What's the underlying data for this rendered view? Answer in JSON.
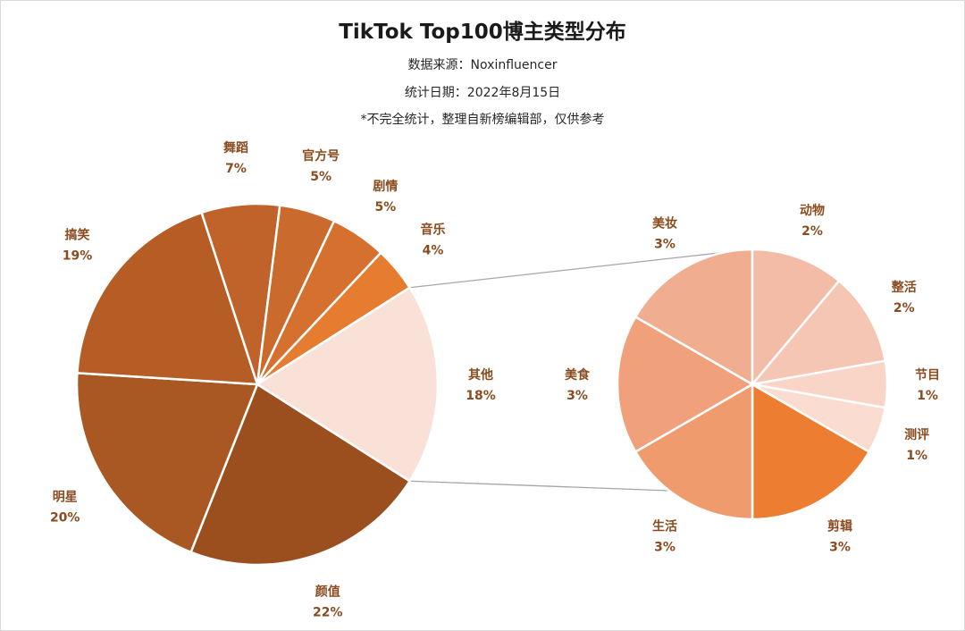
{
  "header": {
    "title": "TikTok Top100博主类型分布",
    "source": "数据来源：Noxinfluencer",
    "date": "统计日期：2022年8月15日",
    "note": "*不完全统计，整理自新榜编辑部，仅供参考"
  },
  "chart_data": {
    "type": "pie",
    "title": "TikTok Top100博主类型分布",
    "main_pie": {
      "slices": [
        {
          "label": "颜值",
          "value": 22,
          "pct": "22%",
          "color": "#9b4f1e"
        },
        {
          "label": "明星",
          "value": 20,
          "pct": "20%",
          "color": "#a95723"
        },
        {
          "label": "搞笑",
          "value": 19,
          "pct": "19%",
          "color": "#b55d25"
        },
        {
          "label": "舞蹈",
          "value": 7,
          "pct": "7%",
          "color": "#c0632a"
        },
        {
          "label": "官方号",
          "value": 5,
          "pct": "5%",
          "color": "#ca6a2c"
        },
        {
          "label": "剧情",
          "value": 5,
          "pct": "5%",
          "color": "#d5702f"
        },
        {
          "label": "音乐",
          "value": 4,
          "pct": "4%",
          "color": "#e57c30"
        },
        {
          "label": "其他",
          "value": 18,
          "pct": "18%",
          "color": "#fae1d8"
        }
      ]
    },
    "secondary_pie": {
      "slices": [
        {
          "label": "剪辑",
          "value": 3,
          "pct": "3%",
          "color": "#ed7d31"
        },
        {
          "label": "生活",
          "value": 3,
          "pct": "3%",
          "color": "#f09b6d"
        },
        {
          "label": "美食",
          "value": 3,
          "pct": "3%",
          "color": "#f0a07b"
        },
        {
          "label": "美妆",
          "value": 3,
          "pct": "3%",
          "color": "#f0ad8f"
        },
        {
          "label": "动物",
          "value": 2,
          "pct": "2%",
          "color": "#f3bca6"
        },
        {
          "label": "整活",
          "value": 2,
          "pct": "2%",
          "color": "#f4c6b3"
        },
        {
          "label": "节目",
          "value": 1,
          "pct": "1%",
          "color": "#f8d5c7"
        },
        {
          "label": "测评",
          "value": 1,
          "pct": "1%",
          "color": "#fadcd1"
        }
      ]
    },
    "legend": "none"
  }
}
